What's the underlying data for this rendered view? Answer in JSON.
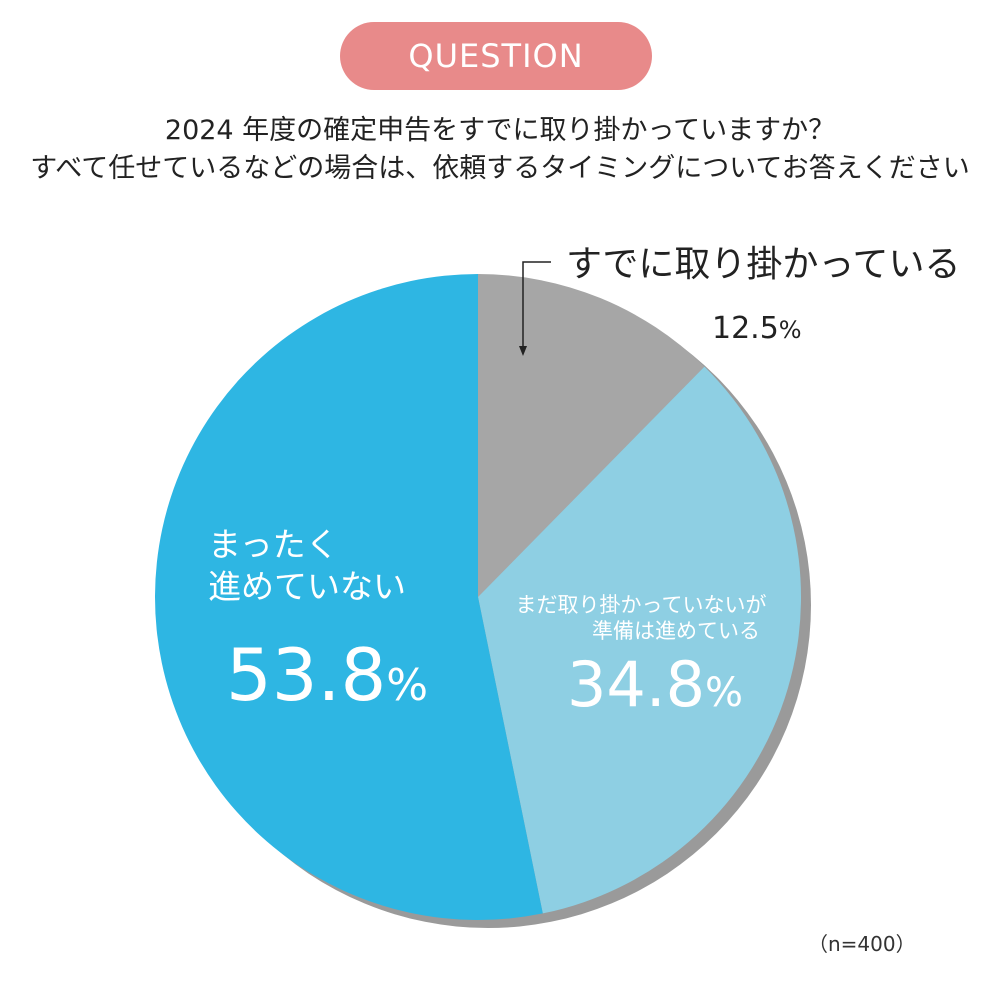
{
  "badge": {
    "label": "QUESTION",
    "color": "#e88a8a"
  },
  "question": {
    "line1": "2024 年度の確定申告をすでに取り掛かっていますか？",
    "line2": "すべて任せているなどの場合は、依頼するタイミングについてお答えください"
  },
  "sample_note": "（n=400）",
  "chart_data": {
    "type": "pie",
    "start_angle_deg": 0,
    "direction": "clockwise",
    "slices": [
      {
        "label_lines": [
          "すでに取り掛かっている"
        ],
        "value": 12.5,
        "value_label": "12.5",
        "unit": "%",
        "color": "#a6a6a6",
        "label_placement": "outside-top-right"
      },
      {
        "label_lines": [
          "まだ取り掛かっていないが",
          "準備は進めている"
        ],
        "value": 34.8,
        "value_label": "34.8",
        "unit": "%",
        "color": "#8ecfe3",
        "label_placement": "inside"
      },
      {
        "label_lines": [
          "まったく",
          "進めていない"
        ],
        "value": 53.8,
        "value_label": "53.8",
        "unit": "%",
        "color": "#2eb6e3",
        "label_placement": "inside"
      }
    ],
    "shadow_color": "#9a9a9a"
  }
}
